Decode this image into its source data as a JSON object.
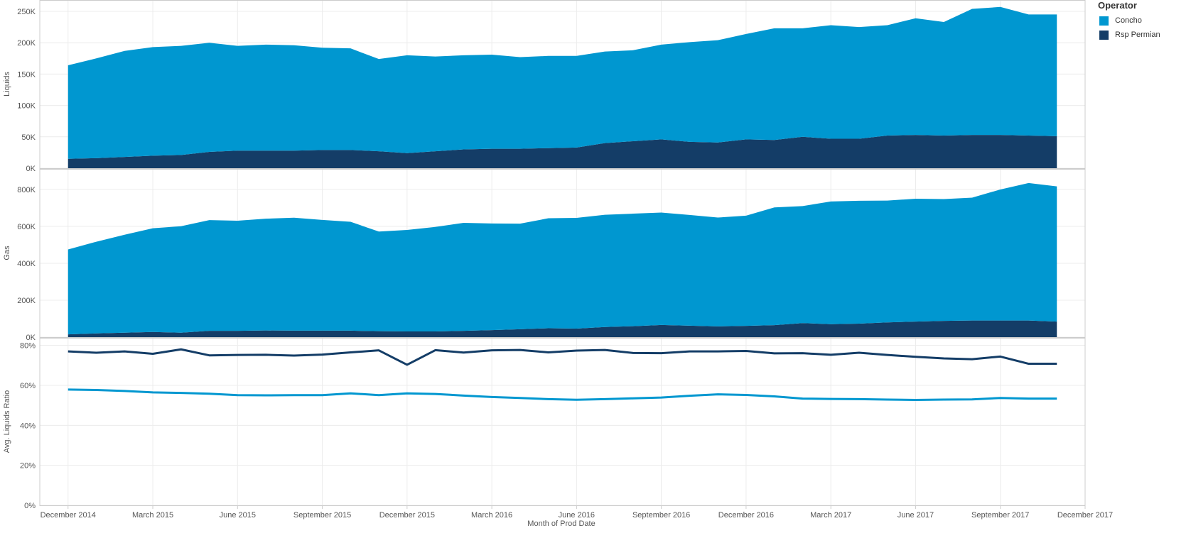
{
  "colors": {
    "concho": "#0097D0",
    "rsp": "#143D67",
    "grid": "#ececec",
    "axis": "#cccccc",
    "text": "#555555"
  },
  "legend": {
    "title": "Operator",
    "items": [
      {
        "label": "Concho",
        "color": "#0097D0"
      },
      {
        "label": "Rsp Permian",
        "color": "#143D67"
      }
    ]
  },
  "chart_data": {
    "type": "area",
    "xlabel": "Month of Prod Date",
    "x": [
      "2014-12",
      "2015-01",
      "2015-02",
      "2015-03",
      "2015-04",
      "2015-05",
      "2015-06",
      "2015-07",
      "2015-08",
      "2015-09",
      "2015-10",
      "2015-11",
      "2015-12",
      "2016-01",
      "2016-02",
      "2016-03",
      "2016-04",
      "2016-05",
      "2016-06",
      "2016-07",
      "2016-08",
      "2016-09",
      "2016-10",
      "2016-11",
      "2016-12",
      "2017-01",
      "2017-02",
      "2017-03",
      "2017-04",
      "2017-05",
      "2017-06",
      "2017-07",
      "2017-08",
      "2017-09",
      "2017-10",
      "2017-11"
    ],
    "x_ticks": [
      {
        "date": "2014-12",
        "label": "December 2014"
      },
      {
        "date": "2015-03",
        "label": "March 2015"
      },
      {
        "date": "2015-06",
        "label": "June 2015"
      },
      {
        "date": "2015-09",
        "label": "September 2015"
      },
      {
        "date": "2015-12",
        "label": "December 2015"
      },
      {
        "date": "2016-03",
        "label": "March 2016"
      },
      {
        "date": "2016-06",
        "label": "June 2016"
      },
      {
        "date": "2016-09",
        "label": "September 2016"
      },
      {
        "date": "2016-12",
        "label": "December 2016"
      },
      {
        "date": "2017-03",
        "label": "March 2017"
      },
      {
        "date": "2017-06",
        "label": "June 2017"
      },
      {
        "date": "2017-09",
        "label": "September 2017"
      },
      {
        "date": "2017-12",
        "label": "December 2017"
      }
    ],
    "x_range": [
      "2014-11",
      "2017-12"
    ],
    "panels": [
      {
        "ylabel": "Liquids",
        "type": "stacked-area",
        "ylim": [
          0,
          250000
        ],
        "ticks": [
          0,
          50000,
          100000,
          150000,
          200000,
          250000
        ],
        "tick_labels": [
          "0K",
          "50K",
          "100K",
          "150K",
          "200K",
          "250K"
        ],
        "series": [
          {
            "name": "Rsp Permian",
            "values": [
              15000,
              16000,
              18000,
              20000,
              21000,
              26000,
              28000,
              28000,
              28000,
              29000,
              29000,
              27000,
              24000,
              27000,
              30000,
              31000,
              31000,
              32000,
              33000,
              40000,
              43000,
              46000,
              42000,
              41000,
              46000,
              45000,
              50000,
              47000,
              47000,
              52000,
              53000,
              52000,
              53000,
              53000,
              52000,
              51000
            ]
          },
          {
            "name": "Concho",
            "values": [
              149000,
              159000,
              169000,
              173000,
              174000,
              174000,
              167000,
              169000,
              168000,
              163000,
              162000,
              147000,
              156000,
              151000,
              150000,
              150000,
              146000,
              147000,
              146000,
              146000,
              145000,
              151000,
              159000,
              163000,
              168000,
              178000,
              173000,
              181000,
              178000,
              176000,
              186000,
              181000,
              201000,
              204000,
              193000,
              194000
            ]
          }
        ]
      },
      {
        "ylabel": "Gas",
        "type": "stacked-area",
        "ylim": [
          0,
          850000
        ],
        "ticks": [
          0,
          200000,
          400000,
          600000,
          800000
        ],
        "tick_labels": [
          "0K",
          "200K",
          "400K",
          "600K",
          "800K"
        ],
        "series": [
          {
            "name": "Rsp Permian",
            "values": [
              15000,
              20000,
              24000,
              28000,
              24000,
              34000,
              34000,
              36000,
              35000,
              35000,
              35000,
              32000,
              31000,
              31000,
              34000,
              38000,
              43000,
              48000,
              46000,
              55000,
              59000,
              66000,
              62000,
              58000,
              61000,
              65000,
              76000,
              70000,
              73000,
              80000,
              84000,
              88000,
              90000,
              90000,
              90000,
              84000
            ]
          },
          {
            "name": "Concho",
            "values": [
              460000,
              497000,
              531000,
              562000,
              577000,
              600000,
              597000,
              606000,
              612000,
              600000,
              590000,
              540000,
              550000,
              566000,
              585000,
              578000,
              572000,
              596000,
              600000,
              608000,
              610000,
              609000,
              600000,
              590000,
              597000,
              638000,
              634000,
              665000,
              666000,
              660000,
              666000,
              660000,
              666000,
              710000,
              745000,
              733000
            ]
          }
        ]
      },
      {
        "ylabel": "Avg. Liquids Ratio",
        "type": "line",
        "ylim": [
          0,
          0.82
        ],
        "ticks": [
          0,
          0.2,
          0.4,
          0.6,
          0.8
        ],
        "tick_labels": [
          "0%",
          "20%",
          "40%",
          "60%",
          "80%"
        ],
        "series": [
          {
            "name": "Rsp Permian",
            "values": [
              0.77,
              0.763,
              0.77,
              0.758,
              0.78,
              0.75,
              0.752,
              0.753,
              0.749,
              0.754,
              0.765,
              0.775,
              0.703,
              0.776,
              0.764,
              0.775,
              0.777,
              0.765,
              0.774,
              0.777,
              0.762,
              0.761,
              0.77,
              0.77,
              0.772,
              0.76,
              0.761,
              0.753,
              0.763,
              0.752,
              0.743,
              0.735,
              0.731,
              0.744,
              0.708,
              0.708
            ]
          },
          {
            "name": "Concho",
            "values": [
              0.579,
              0.577,
              0.572,
              0.565,
              0.562,
              0.558,
              0.551,
              0.55,
              0.551,
              0.551,
              0.56,
              0.551,
              0.56,
              0.557,
              0.549,
              0.542,
              0.537,
              0.531,
              0.528,
              0.531,
              0.535,
              0.539,
              0.548,
              0.555,
              0.552,
              0.545,
              0.534,
              0.532,
              0.531,
              0.529,
              0.527,
              0.529,
              0.53,
              0.537,
              0.534,
              0.534
            ]
          }
        ]
      }
    ],
    "grid": true,
    "legend_position": "top-right"
  }
}
